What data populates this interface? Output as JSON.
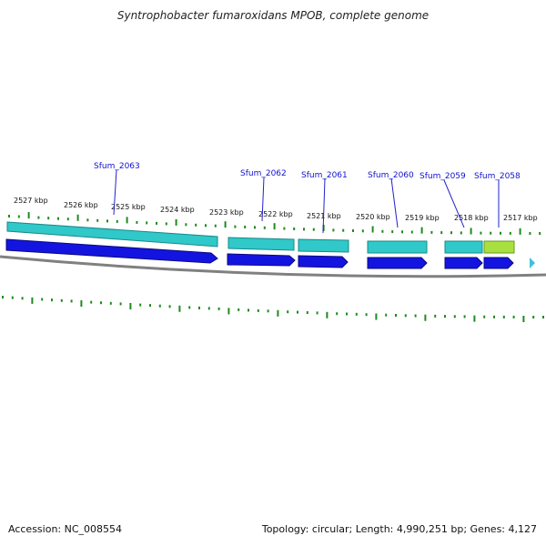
{
  "title": "Syntrophobacter fumaroxidans MPOB, complete genome",
  "footer": {
    "accession": "Accession: NC_008554",
    "summary": "Topology: circular; Length: 4,990,251 bp; Genes: 4,127"
  },
  "colors": {
    "title_text": "#222222",
    "tick_marks": "#1f8a1f",
    "backbone": "#808080",
    "gene_label_text": "#1111cc",
    "gene_label_leader": "#2222cc",
    "cds_feature": "#1414e0",
    "gene_feature_teal": "#30c8c8",
    "gene_feature_green": "#a8e040",
    "small_marker": "#40c0e0"
  },
  "tick_labels": [
    {
      "text": "2527 kbp",
      "kbp": 2527
    },
    {
      "text": "2526 kbp",
      "kbp": 2526
    },
    {
      "text": "2525 kbp",
      "kbp": 2525
    },
    {
      "text": "2524 kbp",
      "kbp": 2524
    },
    {
      "text": "2523 kbp",
      "kbp": 2523
    },
    {
      "text": "2522 kbp",
      "kbp": 2522
    },
    {
      "text": "2521 kbp",
      "kbp": 2521
    },
    {
      "text": "2520 kbp",
      "kbp": 2520
    },
    {
      "text": "2519 kbp",
      "kbp": 2519
    },
    {
      "text": "2518 kbp",
      "kbp": 2518
    },
    {
      "text": "2517 kbp",
      "kbp": 2517
    }
  ],
  "genes": [
    {
      "label": "Sfum_2063",
      "feature_color": "teal"
    },
    {
      "label": "Sfum_2062",
      "feature_color": "teal"
    },
    {
      "label": "Sfum_2061",
      "feature_color": "teal"
    },
    {
      "label": "Sfum_2060",
      "feature_color": "teal"
    },
    {
      "label": "Sfum_2059",
      "feature_color": "teal"
    },
    {
      "label": "Sfum_2058",
      "feature_color": "green"
    }
  ]
}
